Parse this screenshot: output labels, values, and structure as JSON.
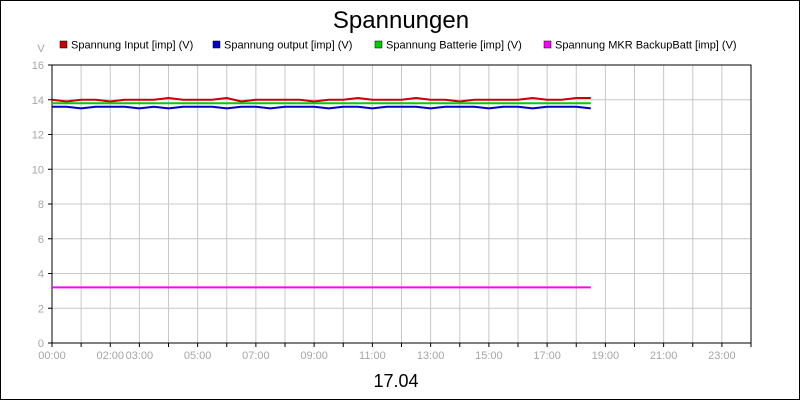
{
  "chart_data": {
    "type": "line",
    "title": "Spannungen",
    "xlabel": "17.04",
    "ylabel": "V",
    "ylim": [
      0,
      16
    ],
    "xlim_hours": [
      0,
      24
    ],
    "yticks": [
      0,
      2,
      4,
      6,
      8,
      10,
      12,
      14,
      16
    ],
    "xticks": [
      {
        "label": "00:00",
        "hour": 0
      },
      {
        "label": "02:00",
        "hour": 2
      },
      {
        "label": "03:00",
        "hour": 3
      },
      {
        "label": "05:00",
        "hour": 5
      },
      {
        "label": "07:00",
        "hour": 7
      },
      {
        "label": "09:00",
        "hour": 9
      },
      {
        "label": "11:00",
        "hour": 11
      },
      {
        "label": "13:00",
        "hour": 13
      },
      {
        "label": "15:00",
        "hour": 15
      },
      {
        "label": "17:00",
        "hour": 17
      },
      {
        "label": "19:00",
        "hour": 19
      },
      {
        "label": "21:00",
        "hour": 21
      },
      {
        "label": "23:00",
        "hour": 23
      }
    ],
    "grid": true,
    "legend_position": "top",
    "series": [
      {
        "name": "Spannung Input [imp] (V)",
        "color": "#cc0000",
        "x_hours": [
          0,
          0.5,
          1,
          1.5,
          2,
          2.5,
          3,
          3.5,
          4,
          4.5,
          5,
          5.5,
          6,
          6.5,
          7,
          7.5,
          8,
          8.5,
          9,
          9.5,
          10,
          10.5,
          11,
          11.5,
          12,
          12.5,
          13,
          13.5,
          14,
          14.5,
          15,
          15.5,
          16,
          16.5,
          17,
          17.5,
          18,
          18.5
        ],
        "values": [
          14.0,
          13.9,
          14.0,
          14.0,
          13.9,
          14.0,
          14.0,
          14.0,
          14.1,
          14.0,
          14.0,
          14.0,
          14.1,
          13.9,
          14.0,
          14.0,
          14.0,
          14.0,
          13.9,
          14.0,
          14.0,
          14.1,
          14.0,
          14.0,
          14.0,
          14.1,
          14.0,
          14.0,
          13.9,
          14.0,
          14.0,
          14.0,
          14.0,
          14.1,
          14.0,
          14.0,
          14.1,
          14.1
        ]
      },
      {
        "name": "Spannung output [imp] (V)",
        "color": "#0000cc",
        "x_hours": [
          0,
          0.5,
          1,
          1.5,
          2,
          2.5,
          3,
          3.5,
          4,
          4.5,
          5,
          5.5,
          6,
          6.5,
          7,
          7.5,
          8,
          8.5,
          9,
          9.5,
          10,
          10.5,
          11,
          11.5,
          12,
          12.5,
          13,
          13.5,
          14,
          14.5,
          15,
          15.5,
          16,
          16.5,
          17,
          17.5,
          18,
          18.5
        ],
        "values": [
          13.6,
          13.6,
          13.5,
          13.6,
          13.6,
          13.6,
          13.5,
          13.6,
          13.5,
          13.6,
          13.6,
          13.6,
          13.5,
          13.6,
          13.6,
          13.5,
          13.6,
          13.6,
          13.6,
          13.5,
          13.6,
          13.6,
          13.5,
          13.6,
          13.6,
          13.6,
          13.5,
          13.6,
          13.6,
          13.6,
          13.5,
          13.6,
          13.6,
          13.5,
          13.6,
          13.6,
          13.6,
          13.5
        ]
      },
      {
        "name": "Spannung Batterie [imp] (V)",
        "color": "#00cc00",
        "x_hours": [
          0,
          1,
          2,
          3,
          4,
          5,
          6,
          7,
          8,
          9,
          10,
          11,
          12,
          13,
          14,
          15,
          16,
          17,
          18,
          18.5
        ],
        "values": [
          13.8,
          13.8,
          13.8,
          13.8,
          13.8,
          13.8,
          13.8,
          13.8,
          13.8,
          13.8,
          13.8,
          13.8,
          13.8,
          13.8,
          13.8,
          13.8,
          13.8,
          13.8,
          13.8,
          13.8
        ]
      },
      {
        "name": "Spannung MKR BackupBatt [imp] (V)",
        "color": "#ff00ff",
        "x_hours": [
          0,
          18.5
        ],
        "values": [
          3.2,
          3.2
        ]
      }
    ]
  }
}
